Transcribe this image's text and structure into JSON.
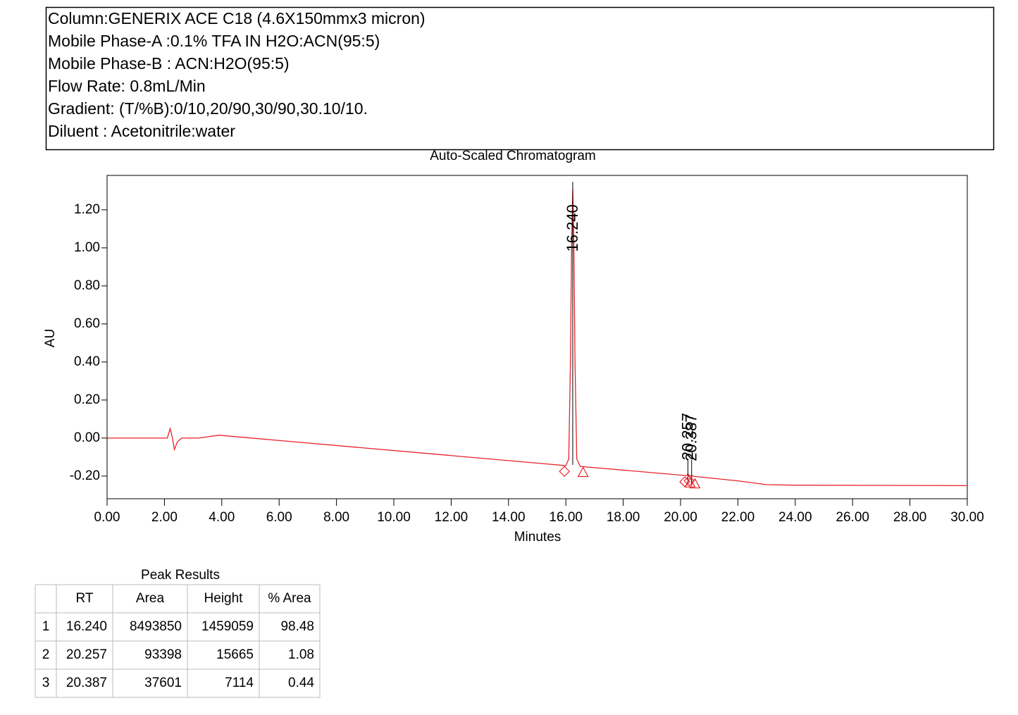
{
  "header": {
    "lines": [
      "Column:GENERIX ACE C18 (4.6X150mmx3 micron)",
      "Mobile Phase-A :0.1% TFA IN H2O:ACN(95:5)",
      "Mobile Phase-B : ACN:H2O(95:5)",
      "Flow Rate: 0.8mL/Min",
      "Gradient: (T/%B):0/10,20/90,30/90,30.10/10.",
      "Diluent : Acetonitrile:water"
    ]
  },
  "chart_data": {
    "type": "line",
    "title": "Auto-Scaled Chromatogram",
    "x_label": "Minutes",
    "y_label": "AU",
    "color": "#e8242a",
    "x": [
      0,
      2.1,
      2.2,
      2.28,
      2.35,
      2.45,
      2.6,
      3.2,
      3.9,
      16.0,
      16.1,
      16.16,
      16.2,
      16.24,
      16.28,
      16.32,
      16.38,
      16.5,
      20.2,
      20.26,
      20.32,
      20.39,
      20.45,
      22,
      23,
      24,
      30
    ],
    "values": [
      0,
      0,
      0.05,
      0,
      -0.06,
      -0.02,
      0,
      0,
      0.015,
      -0.145,
      -0.11,
      0.4,
      1.0,
      1.31,
      1.0,
      0.4,
      -0.11,
      -0.149,
      -0.197,
      -0.19,
      -0.199,
      -0.196,
      -0.201,
      -0.225,
      -0.245,
      -0.248,
      -0.25
    ],
    "xlim": [
      0,
      30
    ],
    "ylim": [
      -0.319,
      1.381
    ],
    "xticks": [
      {
        "value": 0,
        "label": "0.00"
      },
      {
        "value": 2,
        "label": "2.00"
      },
      {
        "value": 4,
        "label": "4.00"
      },
      {
        "value": 6,
        "label": "6.00"
      },
      {
        "value": 8,
        "label": "8.00"
      },
      {
        "value": 10,
        "label": "10.00"
      },
      {
        "value": 12,
        "label": "12.00"
      },
      {
        "value": 14,
        "label": "14.00"
      },
      {
        "value": 16,
        "label": "16.00"
      },
      {
        "value": 18,
        "label": "18.00"
      },
      {
        "value": 20,
        "label": "20.00"
      },
      {
        "value": 22,
        "label": "22.00"
      },
      {
        "value": 24,
        "label": "24.00"
      },
      {
        "value": 26,
        "label": "26.00"
      },
      {
        "value": 28,
        "label": "28.00"
      },
      {
        "value": 30,
        "label": "30.00"
      }
    ],
    "yticks": [
      {
        "value": -0.2,
        "label": "-0.20"
      },
      {
        "value": 0,
        "label": "0.00"
      },
      {
        "value": 0.2,
        "label": "0.20"
      },
      {
        "value": 0.4,
        "label": "0.40"
      },
      {
        "value": 0.6,
        "label": "0.60"
      },
      {
        "value": 0.8,
        "label": "0.80"
      },
      {
        "value": 1.0,
        "label": "1.00"
      },
      {
        "value": 1.2,
        "label": "1.20"
      }
    ],
    "peaks": [
      {
        "x": 16.24,
        "label": "16.240",
        "start": [
          15.95,
          -0.175
        ],
        "end": [
          16.6,
          -0.18
        ]
      },
      {
        "x": 20.257,
        "label": "20.257",
        "start": [
          20.15,
          -0.23
        ],
        "end": [
          20.33,
          -0.235
        ]
      },
      {
        "x": 20.387,
        "label": "20.387",
        "start": [
          20.3,
          -0.225
        ],
        "end": [
          20.5,
          -0.24
        ]
      }
    ]
  },
  "table": {
    "title": "Peak Results",
    "headers": [
      "RT",
      "Area",
      "Height",
      "% Area"
    ],
    "rows": [
      [
        "1",
        "16.240",
        "8493850",
        "1459059",
        "98.48"
      ],
      [
        "2",
        "20.257",
        "93398",
        "15665",
        "1.08"
      ],
      [
        "3",
        "20.387",
        "37601",
        "7114",
        "0.44"
      ]
    ]
  }
}
